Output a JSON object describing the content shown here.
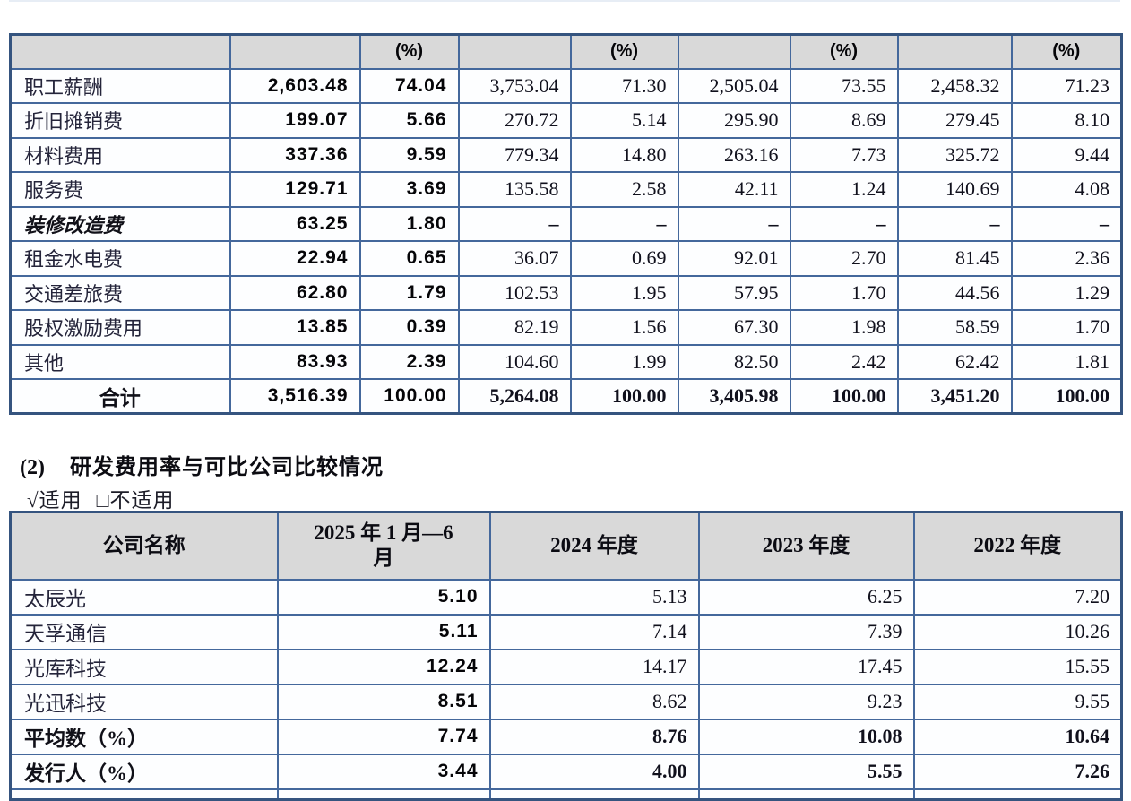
{
  "colors": {
    "table_border": "#44689c",
    "table_outer_border": "#35547f",
    "header_bg": "#d9d9d9",
    "page_bg": "#ffffff"
  },
  "section": {
    "number": "(2)",
    "title": "研发费用率与可比公司比较情况",
    "applicable": "√适用",
    "not_applicable": "□不适用"
  },
  "expense_table": {
    "header": [
      "",
      "",
      "(%)",
      "",
      "(%)",
      "",
      "(%)",
      "",
      "(%)"
    ],
    "rows": [
      {
        "label": "职工薪酬",
        "style": "normal",
        "values": [
          "2,603.48",
          "74.04",
          "3,753.04",
          "71.30",
          "2,505.04",
          "73.55",
          "2,458.32",
          "71.23"
        ]
      },
      {
        "label": "折旧摊销费",
        "style": "normal",
        "values": [
          "199.07",
          "5.66",
          "270.72",
          "5.14",
          "295.90",
          "8.69",
          "279.45",
          "8.10"
        ]
      },
      {
        "label": "材料费用",
        "style": "normal",
        "values": [
          "337.36",
          "9.59",
          "779.34",
          "14.80",
          "263.16",
          "7.73",
          "325.72",
          "9.44"
        ]
      },
      {
        "label": "服务费",
        "style": "normal",
        "values": [
          "129.71",
          "3.69",
          "135.58",
          "2.58",
          "42.11",
          "1.24",
          "140.69",
          "4.08"
        ]
      },
      {
        "label": "装修改造费",
        "style": "kai",
        "values": [
          "63.25",
          "1.80",
          "–",
          "–",
          "–",
          "–",
          "–",
          "–"
        ]
      },
      {
        "label": "租金水电费",
        "style": "normal",
        "values": [
          "22.94",
          "0.65",
          "36.07",
          "0.69",
          "92.01",
          "2.70",
          "81.45",
          "2.36"
        ]
      },
      {
        "label": "交通差旅费",
        "style": "normal",
        "values": [
          "62.80",
          "1.79",
          "102.53",
          "1.95",
          "57.95",
          "1.70",
          "44.56",
          "1.29"
        ]
      },
      {
        "label": "股权激励费用",
        "style": "normal",
        "values": [
          "13.85",
          "0.39",
          "82.19",
          "1.56",
          "67.30",
          "1.98",
          "58.59",
          "1.70"
        ]
      },
      {
        "label": "其他",
        "style": "normal",
        "values": [
          "83.93",
          "2.39",
          "104.60",
          "1.99",
          "82.50",
          "2.42",
          "62.42",
          "1.81"
        ]
      },
      {
        "label": "合计",
        "style": "total",
        "values": [
          "3,516.39",
          "100.00",
          "5,264.08",
          "100.00",
          "3,405.98",
          "100.00",
          "3,451.20",
          "100.00"
        ]
      }
    ]
  },
  "rd_rate_table": {
    "header": [
      "公司名称",
      "2025 年 1 月—6\n月",
      "2024 年度",
      "2023 年度",
      "2022 年度"
    ],
    "rows": [
      {
        "label": "太辰光",
        "style": "normal",
        "values": [
          "5.10",
          "5.13",
          "6.25",
          "7.20"
        ]
      },
      {
        "label": "天孚通信",
        "style": "normal",
        "values": [
          "5.11",
          "7.14",
          "7.39",
          "10.26"
        ]
      },
      {
        "label": "光库科技",
        "style": "normal",
        "values": [
          "12.24",
          "14.17",
          "17.45",
          "15.55"
        ]
      },
      {
        "label": "光迅科技",
        "style": "normal",
        "values": [
          "8.51",
          "8.62",
          "9.23",
          "9.55"
        ]
      },
      {
        "label": "平均数（%）",
        "style": "bold",
        "values": [
          "7.74",
          "8.76",
          "10.08",
          "10.64"
        ]
      },
      {
        "label": "发行人（%）",
        "style": "bold",
        "values": [
          "3.44",
          "4.00",
          "5.55",
          "7.26"
        ]
      }
    ]
  }
}
